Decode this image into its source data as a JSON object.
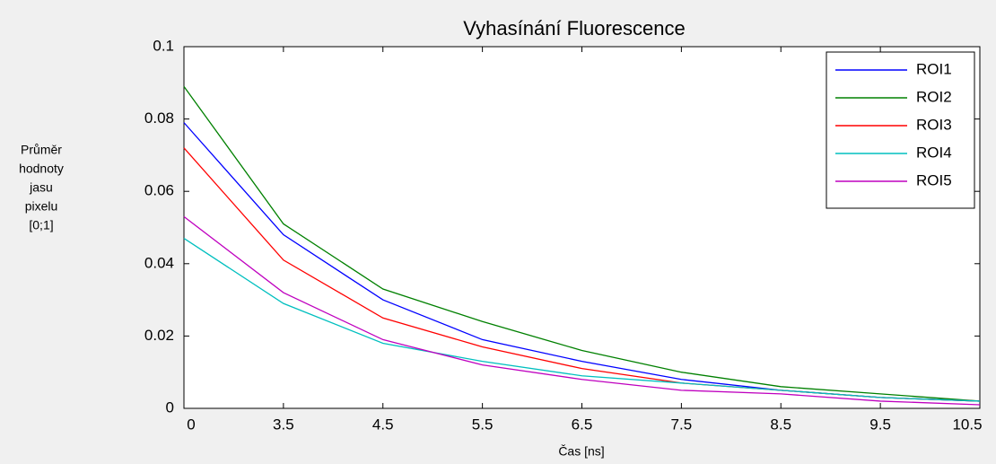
{
  "chart_data": {
    "type": "line",
    "title": "Vyhasínání Fluorescence",
    "xlabel": "Čas [ns]",
    "ylabel": [
      "Průměr",
      "hodnoty",
      "jasu",
      "pixelu",
      "[0;1]"
    ],
    "categories": [
      "0",
      "3.5",
      "4.5",
      "5.5",
      "6.5",
      "7.5",
      "8.5",
      "9.5",
      "10.5"
    ],
    "ylim": [
      0,
      0.1
    ],
    "yticks": [
      0,
      0.02,
      0.04,
      0.06,
      0.08,
      0.1
    ],
    "legend": "upper right",
    "series": [
      {
        "name": "ROI1",
        "color": "#0000ff",
        "values": [
          0.079,
          0.048,
          0.03,
          0.019,
          0.013,
          0.008,
          0.005,
          0.003,
          0.002
        ]
      },
      {
        "name": "ROI2",
        "color": "#008000",
        "values": [
          0.089,
          0.051,
          0.033,
          0.024,
          0.016,
          0.01,
          0.006,
          0.004,
          0.002
        ]
      },
      {
        "name": "ROI3",
        "color": "#ff0000",
        "values": [
          0.072,
          0.041,
          0.025,
          0.017,
          0.011,
          0.007,
          0.005,
          0.003,
          0.002
        ]
      },
      {
        "name": "ROI4",
        "color": "#00bfbf",
        "values": [
          0.047,
          0.029,
          0.018,
          0.013,
          0.009,
          0.007,
          0.005,
          0.003,
          0.002
        ]
      },
      {
        "name": "ROI5",
        "color": "#bf00bf",
        "values": [
          0.053,
          0.032,
          0.019,
          0.012,
          0.008,
          0.005,
          0.004,
          0.002,
          0.001
        ]
      }
    ]
  }
}
